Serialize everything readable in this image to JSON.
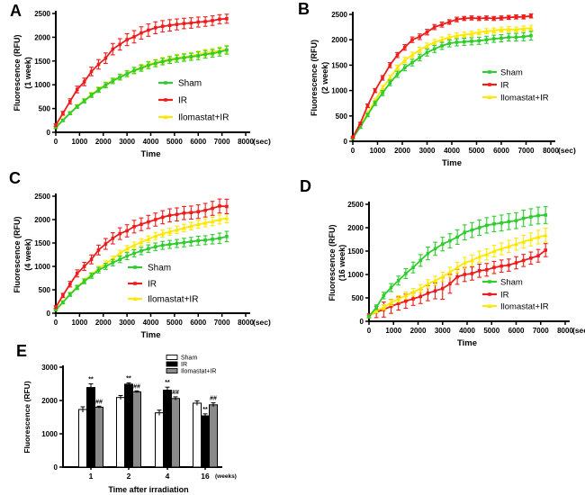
{
  "panel_letters": [
    "A",
    "B",
    "C",
    "D",
    "E"
  ],
  "colors": {
    "sham_green": "#2ECC2E",
    "ir_red": "#EE1D1D",
    "ilomastat_yellow": "#FFE800",
    "bar_white": "#FFFFFF",
    "bar_black": "#000000",
    "bar_gray": "#8A8A8A",
    "axis_black": "#000000",
    "hash_gray": "#666666"
  },
  "chart_data": [
    {
      "panel": "A",
      "type": "line",
      "ylabel": "Fluorescence (RFU)",
      "ylabel2": "(1 week)",
      "xlabel": "Time",
      "x_unit": "(sec)",
      "xlim": [
        0,
        8000
      ],
      "ylim": [
        0,
        2500
      ],
      "xticks": [
        0,
        1000,
        2000,
        3000,
        4000,
        5000,
        6000,
        7000,
        8000
      ],
      "yticks": [
        0,
        500,
        1000,
        1500,
        2000,
        2500
      ],
      "legend_position": "right-middle",
      "x": [
        0,
        300,
        600,
        900,
        1200,
        1500,
        1800,
        2100,
        2400,
        2700,
        3000,
        3300,
        3600,
        3900,
        4200,
        4500,
        4800,
        5100,
        5400,
        5700,
        6000,
        6300,
        6600,
        6900,
        7200
      ],
      "series": [
        {
          "name": "Sham",
          "color": "#2ECC2E",
          "marker": "square",
          "values": [
            100,
            250,
            400,
            540,
            660,
            780,
            890,
            990,
            1080,
            1160,
            1230,
            1300,
            1350,
            1410,
            1450,
            1490,
            1520,
            1550,
            1570,
            1590,
            1610,
            1640,
            1660,
            1690,
            1730
          ],
          "errors": [
            20,
            25,
            30,
            35,
            40,
            45,
            50,
            55,
            55,
            60,
            60,
            65,
            65,
            70,
            70,
            70,
            70,
            75,
            75,
            75,
            80,
            80,
            80,
            85,
            85
          ]
        },
        {
          "name": "IR",
          "color": "#EE1D1D",
          "marker": "square",
          "values": [
            150,
            400,
            650,
            900,
            1060,
            1280,
            1430,
            1560,
            1750,
            1850,
            1950,
            2010,
            2090,
            2150,
            2200,
            2230,
            2250,
            2270,
            2290,
            2300,
            2320,
            2330,
            2350,
            2380,
            2390
          ],
          "errors": [
            30,
            40,
            55,
            70,
            80,
            90,
            100,
            110,
            120,
            120,
            125,
            130,
            130,
            130,
            125,
            120,
            120,
            115,
            110,
            110,
            105,
            100,
            100,
            95,
            95
          ]
        },
        {
          "name": "Ilomastat+IR",
          "color": "#FFE800",
          "marker": "triangle",
          "values": [
            110,
            260,
            410,
            550,
            670,
            800,
            905,
            1005,
            1090,
            1170,
            1240,
            1310,
            1370,
            1430,
            1470,
            1510,
            1540,
            1570,
            1590,
            1610,
            1640,
            1670,
            1690,
            1720,
            1750
          ],
          "errors": [
            20,
            25,
            30,
            35,
            40,
            45,
            50,
            50,
            55,
            55,
            60,
            60,
            60,
            65,
            65,
            65,
            65,
            70,
            70,
            70,
            70,
            75,
            75,
            75,
            80
          ]
        }
      ]
    },
    {
      "panel": "B",
      "type": "line",
      "ylabel": "Fluorescence (RFU)",
      "ylabel2": "(2 week)",
      "xlabel": "Time",
      "x_unit": "(sec)",
      "xlim": [
        0,
        8000
      ],
      "ylim": [
        0,
        2500
      ],
      "xticks": [
        0,
        1000,
        2000,
        3000,
        4000,
        5000,
        6000,
        7000,
        8000
      ],
      "yticks": [
        0,
        500,
        1000,
        1500,
        2000,
        2500
      ],
      "legend_position": "right-middle",
      "x": [
        0,
        300,
        600,
        900,
        1200,
        1500,
        1800,
        2100,
        2400,
        2700,
        3000,
        3300,
        3600,
        3900,
        4200,
        4500,
        4800,
        5100,
        5400,
        5700,
        6000,
        6300,
        6600,
        6900,
        7200
      ],
      "series": [
        {
          "name": "Sham",
          "color": "#2ECC2E",
          "marker": "square",
          "values": [
            60,
            280,
            520,
            750,
            950,
            1150,
            1320,
            1450,
            1550,
            1650,
            1750,
            1820,
            1880,
            1930,
            1950,
            1960,
            1970,
            1980,
            2000,
            2020,
            2030,
            2050,
            2050,
            2060,
            2080
          ],
          "errors": [
            15,
            25,
            35,
            45,
            50,
            55,
            60,
            60,
            65,
            65,
            70,
            70,
            70,
            70,
            70,
            70,
            70,
            70,
            70,
            70,
            70,
            75,
            75,
            80,
            85
          ]
        },
        {
          "name": "IR",
          "color": "#EE1D1D",
          "marker": "square",
          "values": [
            80,
            350,
            700,
            1000,
            1250,
            1500,
            1700,
            1850,
            2000,
            2060,
            2150,
            2250,
            2300,
            2350,
            2400,
            2420,
            2430,
            2420,
            2430,
            2420,
            2430,
            2440,
            2450,
            2450,
            2470
          ],
          "errors": [
            15,
            25,
            35,
            40,
            45,
            50,
            50,
            55,
            55,
            55,
            55,
            50,
            50,
            45,
            45,
            40,
            40,
            40,
            40,
            40,
            40,
            40,
            40,
            40,
            40
          ]
        },
        {
          "name": "Ilomastat+IR",
          "color": "#FFE800",
          "marker": "triangle",
          "values": [
            70,
            300,
            560,
            800,
            1050,
            1250,
            1450,
            1600,
            1700,
            1800,
            1880,
            1950,
            2000,
            2050,
            2080,
            2100,
            2120,
            2150,
            2170,
            2180,
            2200,
            2210,
            2200,
            2220,
            2230
          ],
          "errors": [
            15,
            25,
            35,
            40,
            45,
            50,
            50,
            55,
            55,
            55,
            55,
            55,
            55,
            55,
            55,
            50,
            50,
            50,
            50,
            50,
            50,
            50,
            50,
            50,
            55
          ]
        }
      ]
    },
    {
      "panel": "C",
      "type": "line",
      "ylabel": "Fluorescence (RFU)",
      "ylabel2": "(4 week)",
      "xlabel": "Time",
      "x_unit": "(sec)",
      "xlim": [
        0,
        8000
      ],
      "ylim": [
        0,
        2500
      ],
      "xticks": [
        0,
        1000,
        2000,
        3000,
        4000,
        5000,
        6000,
        7000,
        8000
      ],
      "yticks": [
        0,
        500,
        1000,
        1500,
        2000,
        2500
      ],
      "legend_position": "right-lower",
      "x": [
        0,
        300,
        600,
        900,
        1200,
        1500,
        1800,
        2100,
        2400,
        2700,
        3000,
        3300,
        3600,
        3900,
        4200,
        4500,
        4800,
        5100,
        5400,
        5700,
        6000,
        6300,
        6600,
        6900,
        7200
      ],
      "series": [
        {
          "name": "Sham",
          "color": "#2ECC2E",
          "marker": "square",
          "values": [
            70,
            230,
            400,
            550,
            680,
            800,
            920,
            1000,
            1080,
            1150,
            1220,
            1280,
            1330,
            1380,
            1420,
            1450,
            1470,
            1490,
            1510,
            1530,
            1550,
            1560,
            1580,
            1600,
            1640
          ],
          "errors": [
            20,
            30,
            40,
            45,
            50,
            55,
            60,
            65,
            70,
            70,
            75,
            75,
            80,
            80,
            80,
            85,
            85,
            85,
            90,
            90,
            95,
            95,
            100,
            110,
            110
          ]
        },
        {
          "name": "IR",
          "color": "#EE1D1D",
          "marker": "square",
          "values": [
            130,
            380,
            620,
            850,
            1000,
            1150,
            1350,
            1480,
            1600,
            1700,
            1760,
            1850,
            1900,
            1950,
            2000,
            2050,
            2090,
            2110,
            2140,
            2150,
            2170,
            2200,
            2240,
            2290,
            2280
          ],
          "errors": [
            30,
            45,
            60,
            75,
            85,
            95,
            105,
            115,
            120,
            125,
            130,
            135,
            135,
            140,
            140,
            140,
            140,
            140,
            140,
            140,
            145,
            145,
            150,
            150,
            155
          ]
        },
        {
          "name": "Ilomastat+IR",
          "color": "#FFE800",
          "marker": "triangle",
          "values": [
            80,
            240,
            410,
            560,
            700,
            820,
            950,
            1060,
            1160,
            1280,
            1380,
            1450,
            1520,
            1580,
            1650,
            1700,
            1740,
            1780,
            1820,
            1860,
            1900,
            1930,
            1960,
            2000,
            2030
          ],
          "errors": [
            20,
            30,
            35,
            40,
            45,
            50,
            55,
            60,
            60,
            65,
            65,
            70,
            70,
            70,
            75,
            75,
            75,
            80,
            80,
            80,
            85,
            85,
            90,
            95,
            100
          ]
        }
      ]
    },
    {
      "panel": "D",
      "type": "line",
      "ylabel": "Fluorescence (RFU)",
      "ylabel2": "(16 week)",
      "xlabel": "Time",
      "x_unit": "(sec)",
      "xlim": [
        0,
        8000
      ],
      "ylim": [
        0,
        2500
      ],
      "xticks": [
        0,
        1000,
        2000,
        3000,
        4000,
        5000,
        6000,
        7000,
        8000
      ],
      "yticks": [
        0,
        500,
        1000,
        1500,
        2000,
        2500
      ],
      "legend_position": "right-lower",
      "x": [
        0,
        300,
        600,
        900,
        1200,
        1500,
        1800,
        2100,
        2400,
        2700,
        3000,
        3300,
        3600,
        3900,
        4200,
        4500,
        4800,
        5100,
        5400,
        5700,
        6000,
        6300,
        6600,
        6900,
        7200
      ],
      "series": [
        {
          "name": "Sham",
          "color": "#2ECC2E",
          "marker": "square",
          "values": [
            100,
            300,
            550,
            720,
            870,
            1020,
            1150,
            1300,
            1450,
            1550,
            1650,
            1720,
            1800,
            1900,
            1950,
            2000,
            2050,
            2080,
            2100,
            2130,
            2150,
            2200,
            2230,
            2260,
            2270
          ],
          "errors": [
            25,
            50,
            70,
            85,
            95,
            105,
            115,
            125,
            135,
            140,
            145,
            150,
            155,
            160,
            160,
            165,
            165,
            165,
            170,
            170,
            170,
            175,
            175,
            180,
            180
          ]
        },
        {
          "name": "IR",
          "color": "#EE1D1D",
          "marker": "square",
          "values": [
            120,
            200,
            250,
            320,
            380,
            430,
            480,
            530,
            600,
            650,
            700,
            800,
            950,
            1000,
            1020,
            1080,
            1100,
            1150,
            1180,
            1200,
            1250,
            1300,
            1350,
            1400,
            1520
          ],
          "errors": [
            40,
            120,
            160,
            150,
            140,
            150,
            140,
            150,
            160,
            170,
            230,
            200,
            160,
            150,
            140,
            140,
            135,
            130,
            130,
            130,
            130,
            130,
            130,
            135,
            140
          ]
        },
        {
          "name": "Ilomastat+IR",
          "color": "#FFE800",
          "marker": "triangle",
          "values": [
            100,
            220,
            300,
            400,
            480,
            550,
            620,
            700,
            800,
            870,
            950,
            1050,
            1150,
            1250,
            1300,
            1380,
            1430,
            1500,
            1550,
            1600,
            1650,
            1700,
            1750,
            1800,
            1840
          ],
          "errors": [
            25,
            40,
            55,
            65,
            70,
            75,
            80,
            85,
            90,
            95,
            100,
            105,
            110,
            115,
            115,
            120,
            120,
            125,
            125,
            130,
            130,
            135,
            140,
            145,
            150
          ]
        }
      ]
    },
    {
      "panel": "E",
      "type": "bar",
      "ylabel": "Fluorescence (RFU)",
      "xlabel": "Time after irradiation",
      "x_unit": "(weeks)",
      "ylim": [
        0,
        3000
      ],
      "yticks": [
        0,
        1000,
        2000,
        3000
      ],
      "categories": [
        "1",
        "2",
        "4",
        "16"
      ],
      "legend_position": "top-right",
      "series": [
        {
          "name": "Sham",
          "fill": "#FFFFFF",
          "values": [
            1730,
            2090,
            1630,
            1920
          ],
          "errors": [
            80,
            60,
            80,
            70
          ],
          "sig": [
            "",
            "",
            "",
            ""
          ]
        },
        {
          "name": "IR",
          "fill": "#000000",
          "values": [
            2390,
            2490,
            2310,
            1540
          ],
          "errors": [
            110,
            40,
            90,
            60
          ],
          "sig": [
            "**",
            "**",
            "**",
            "**"
          ]
        },
        {
          "name": "Ilomastat+IR",
          "fill": "#8A8A8A",
          "values": [
            1800,
            2260,
            2060,
            1870
          ],
          "errors": [
            30,
            30,
            50,
            60
          ],
          "sig": [
            "##",
            "##",
            "##",
            "##"
          ]
        }
      ]
    }
  ]
}
